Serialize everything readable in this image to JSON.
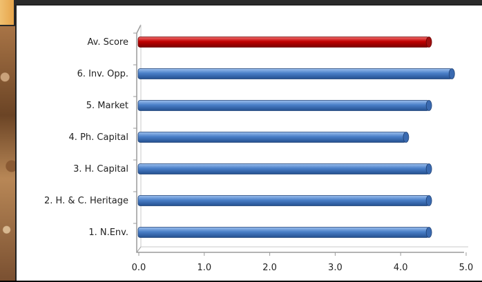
{
  "chart_data": {
    "type": "bar",
    "orientation": "horizontal",
    "categories": [
      "Av. Score",
      "6. Inv. Opp.",
      "5. Market",
      "4. Ph. Capital",
      "3. H. Capital",
      "2. H. & C. Heritage",
      "1. N.Env."
    ],
    "values": [
      4.4,
      4.75,
      4.4,
      4.05,
      4.4,
      4.4,
      4.4
    ],
    "bar_colors": [
      "#c00000",
      "#4a7fc8",
      "#4a7fc8",
      "#4a7fc8",
      "#4a7fc8",
      "#4a7fc8",
      "#4a7fc8"
    ],
    "xlim": [
      0.0,
      5.0
    ],
    "xticks": [
      "0.0",
      "1.0",
      "2.0",
      "3.0",
      "4.0",
      "5.0"
    ],
    "grid": false
  }
}
